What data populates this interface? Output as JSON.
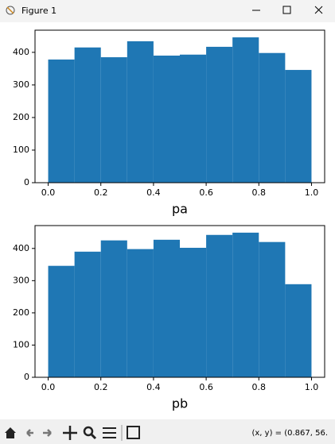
{
  "window": {
    "title": "Figure 1",
    "status": "(x, y) = (0.867, 56."
  },
  "chart_data": [
    {
      "type": "histogram",
      "xlabel": "pa",
      "color": "#1f77b4",
      "bins": [
        0,
        0.1,
        0.2,
        0.3,
        0.4,
        0.5,
        0.6,
        0.7,
        0.8,
        0.9,
        1.0
      ],
      "values": [
        378,
        415,
        385,
        434,
        390,
        393,
        417,
        446,
        398,
        346
      ],
      "xlim": [
        -0.05,
        1.05
      ],
      "ylim": [
        0,
        468
      ],
      "xticks": [
        {
          "value": 0,
          "label": "0.0"
        },
        0.2,
        0.4,
        0.6,
        0.8,
        {
          "value": 1,
          "label": "1.0"
        }
      ],
      "yticks": [
        0,
        100,
        200,
        300,
        400
      ]
    },
    {
      "type": "histogram",
      "xlabel": "pb",
      "color": "#1f77b4",
      "bins": [
        0,
        0.1,
        0.2,
        0.3,
        0.4,
        0.5,
        0.6,
        0.7,
        0.8,
        0.9,
        1.0
      ],
      "values": [
        346,
        390,
        425,
        398,
        427,
        402,
        442,
        449,
        420,
        289
      ],
      "xlim": [
        -0.05,
        1.05
      ],
      "ylim": [
        0,
        471
      ],
      "xticks": [
        {
          "value": 0,
          "label": "0.0"
        },
        0.2,
        0.4,
        0.6,
        0.8,
        {
          "value": 1,
          "label": "1.0"
        }
      ],
      "yticks": [
        0,
        100,
        200,
        300,
        400
      ]
    }
  ]
}
